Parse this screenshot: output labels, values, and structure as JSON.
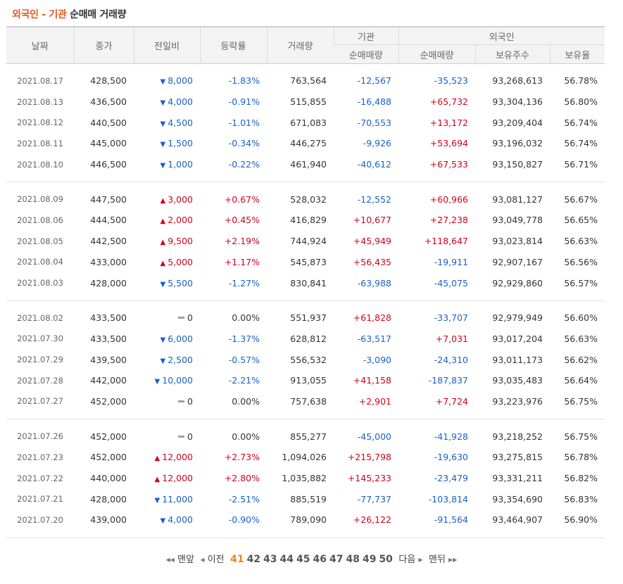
{
  "title": {
    "part1": "외국인 - 기관",
    "part2": "순매매 거래량"
  },
  "headers": {
    "date": "날짜",
    "close": "종가",
    "change": "전일비",
    "rate": "등락률",
    "volume": "거래량",
    "inst_group": "기관",
    "foreign_group": "외국인",
    "inst_net": "순매매량",
    "foreign_net": "순매매량",
    "foreign_holding": "보유주수",
    "foreign_ratio": "보유율"
  },
  "rows": [
    {
      "date": "2021.08.17",
      "close": "428,500",
      "dir": "down",
      "change": "8,000",
      "rate": "-1.83%",
      "volume": "763,564",
      "inst": "-12,567",
      "foreign": "-35,523",
      "holding": "93,268,613",
      "ratio": "56.78%"
    },
    {
      "date": "2021.08.13",
      "close": "436,500",
      "dir": "down",
      "change": "4,000",
      "rate": "-0.91%",
      "volume": "515,855",
      "inst": "-16,488",
      "foreign": "+65,732",
      "holding": "93,304,136",
      "ratio": "56.80%"
    },
    {
      "date": "2021.08.12",
      "close": "440,500",
      "dir": "down",
      "change": "4,500",
      "rate": "-1.01%",
      "volume": "671,083",
      "inst": "-70,553",
      "foreign": "+13,172",
      "holding": "93,209,404",
      "ratio": "56.74%"
    },
    {
      "date": "2021.08.11",
      "close": "445,000",
      "dir": "down",
      "change": "1,500",
      "rate": "-0.34%",
      "volume": "446,275",
      "inst": "-9,926",
      "foreign": "+53,694",
      "holding": "93,196,032",
      "ratio": "56.74%"
    },
    {
      "date": "2021.08.10",
      "close": "446,500",
      "dir": "down",
      "change": "1,000",
      "rate": "-0.22%",
      "volume": "461,940",
      "inst": "-40,612",
      "foreign": "+67,533",
      "holding": "93,150,827",
      "ratio": "56.71%"
    },
    {
      "date": "2021.08.09",
      "close": "447,500",
      "dir": "up",
      "change": "3,000",
      "rate": "+0.67%",
      "volume": "528,032",
      "inst": "-12,552",
      "foreign": "+60,966",
      "holding": "93,081,127",
      "ratio": "56.67%"
    },
    {
      "date": "2021.08.06",
      "close": "444,500",
      "dir": "up",
      "change": "2,000",
      "rate": "+0.45%",
      "volume": "416,829",
      "inst": "+10,677",
      "foreign": "+27,238",
      "holding": "93,049,778",
      "ratio": "56.65%"
    },
    {
      "date": "2021.08.05",
      "close": "442,500",
      "dir": "up",
      "change": "9,500",
      "rate": "+2.19%",
      "volume": "744,924",
      "inst": "+45,949",
      "foreign": "+118,647",
      "holding": "93,023,814",
      "ratio": "56.63%"
    },
    {
      "date": "2021.08.04",
      "close": "433,000",
      "dir": "up",
      "change": "5,000",
      "rate": "+1.17%",
      "volume": "545,873",
      "inst": "+56,435",
      "foreign": "-19,911",
      "holding": "92,907,167",
      "ratio": "56.56%"
    },
    {
      "date": "2021.08.03",
      "close": "428,000",
      "dir": "down",
      "change": "5,500",
      "rate": "-1.27%",
      "volume": "830,841",
      "inst": "-63,988",
      "foreign": "-45,075",
      "holding": "92,929,860",
      "ratio": "56.57%"
    },
    {
      "date": "2021.08.02",
      "close": "433,500",
      "dir": "flat",
      "change": "0",
      "rate": "0.00%",
      "volume": "551,937",
      "inst": "+61,828",
      "foreign": "-33,707",
      "holding": "92,979,949",
      "ratio": "56.60%"
    },
    {
      "date": "2021.07.30",
      "close": "433,500",
      "dir": "down",
      "change": "6,000",
      "rate": "-1.37%",
      "volume": "628,812",
      "inst": "-63,517",
      "foreign": "+7,031",
      "holding": "93,017,204",
      "ratio": "56.63%"
    },
    {
      "date": "2021.07.29",
      "close": "439,500",
      "dir": "down",
      "change": "2,500",
      "rate": "-0.57%",
      "volume": "556,532",
      "inst": "-3,090",
      "foreign": "-24,310",
      "holding": "93,011,173",
      "ratio": "56.62%"
    },
    {
      "date": "2021.07.28",
      "close": "442,000",
      "dir": "down",
      "change": "10,000",
      "rate": "-2.21%",
      "volume": "913,055",
      "inst": "+41,158",
      "foreign": "-187,837",
      "holding": "93,035,483",
      "ratio": "56.64%"
    },
    {
      "date": "2021.07.27",
      "close": "452,000",
      "dir": "flat",
      "change": "0",
      "rate": "0.00%",
      "volume": "757,638",
      "inst": "+2,901",
      "foreign": "+7,724",
      "holding": "93,223,976",
      "ratio": "56.75%"
    },
    {
      "date": "2021.07.26",
      "close": "452,000",
      "dir": "flat",
      "change": "0",
      "rate": "0.00%",
      "volume": "855,277",
      "inst": "-45,000",
      "foreign": "-41,928",
      "holding": "93,218,252",
      "ratio": "56.75%"
    },
    {
      "date": "2021.07.23",
      "close": "452,000",
      "dir": "up",
      "change": "12,000",
      "rate": "+2.73%",
      "volume": "1,094,026",
      "inst": "+215,798",
      "foreign": "-19,630",
      "holding": "93,275,815",
      "ratio": "56.78%"
    },
    {
      "date": "2021.07.22",
      "close": "440,000",
      "dir": "up",
      "change": "12,000",
      "rate": "+2.80%",
      "volume": "1,035,882",
      "inst": "+145,233",
      "foreign": "-23,479",
      "holding": "93,331,211",
      "ratio": "56.82%"
    },
    {
      "date": "2021.07.21",
      "close": "428,000",
      "dir": "down",
      "change": "11,000",
      "rate": "-2.51%",
      "volume": "885,519",
      "inst": "-77,737",
      "foreign": "-103,814",
      "holding": "93,354,690",
      "ratio": "56.83%"
    },
    {
      "date": "2021.07.20",
      "close": "439,000",
      "dir": "down",
      "change": "4,000",
      "rate": "-0.90%",
      "volume": "789,090",
      "inst": "+26,122",
      "foreign": "-91,564",
      "holding": "93,464,907",
      "ratio": "56.90%"
    }
  ],
  "pagination": {
    "first": "맨앞",
    "prev": "이전",
    "pages": [
      "41",
      "42",
      "43",
      "44",
      "45",
      "46",
      "47",
      "48",
      "49",
      "50"
    ],
    "current": "41",
    "next": "다음",
    "last": "맨뒤"
  },
  "colors": {
    "up": "#d0021b",
    "down": "#1861c6",
    "accent": "#e8561c",
    "current_page": "#e8881c"
  }
}
